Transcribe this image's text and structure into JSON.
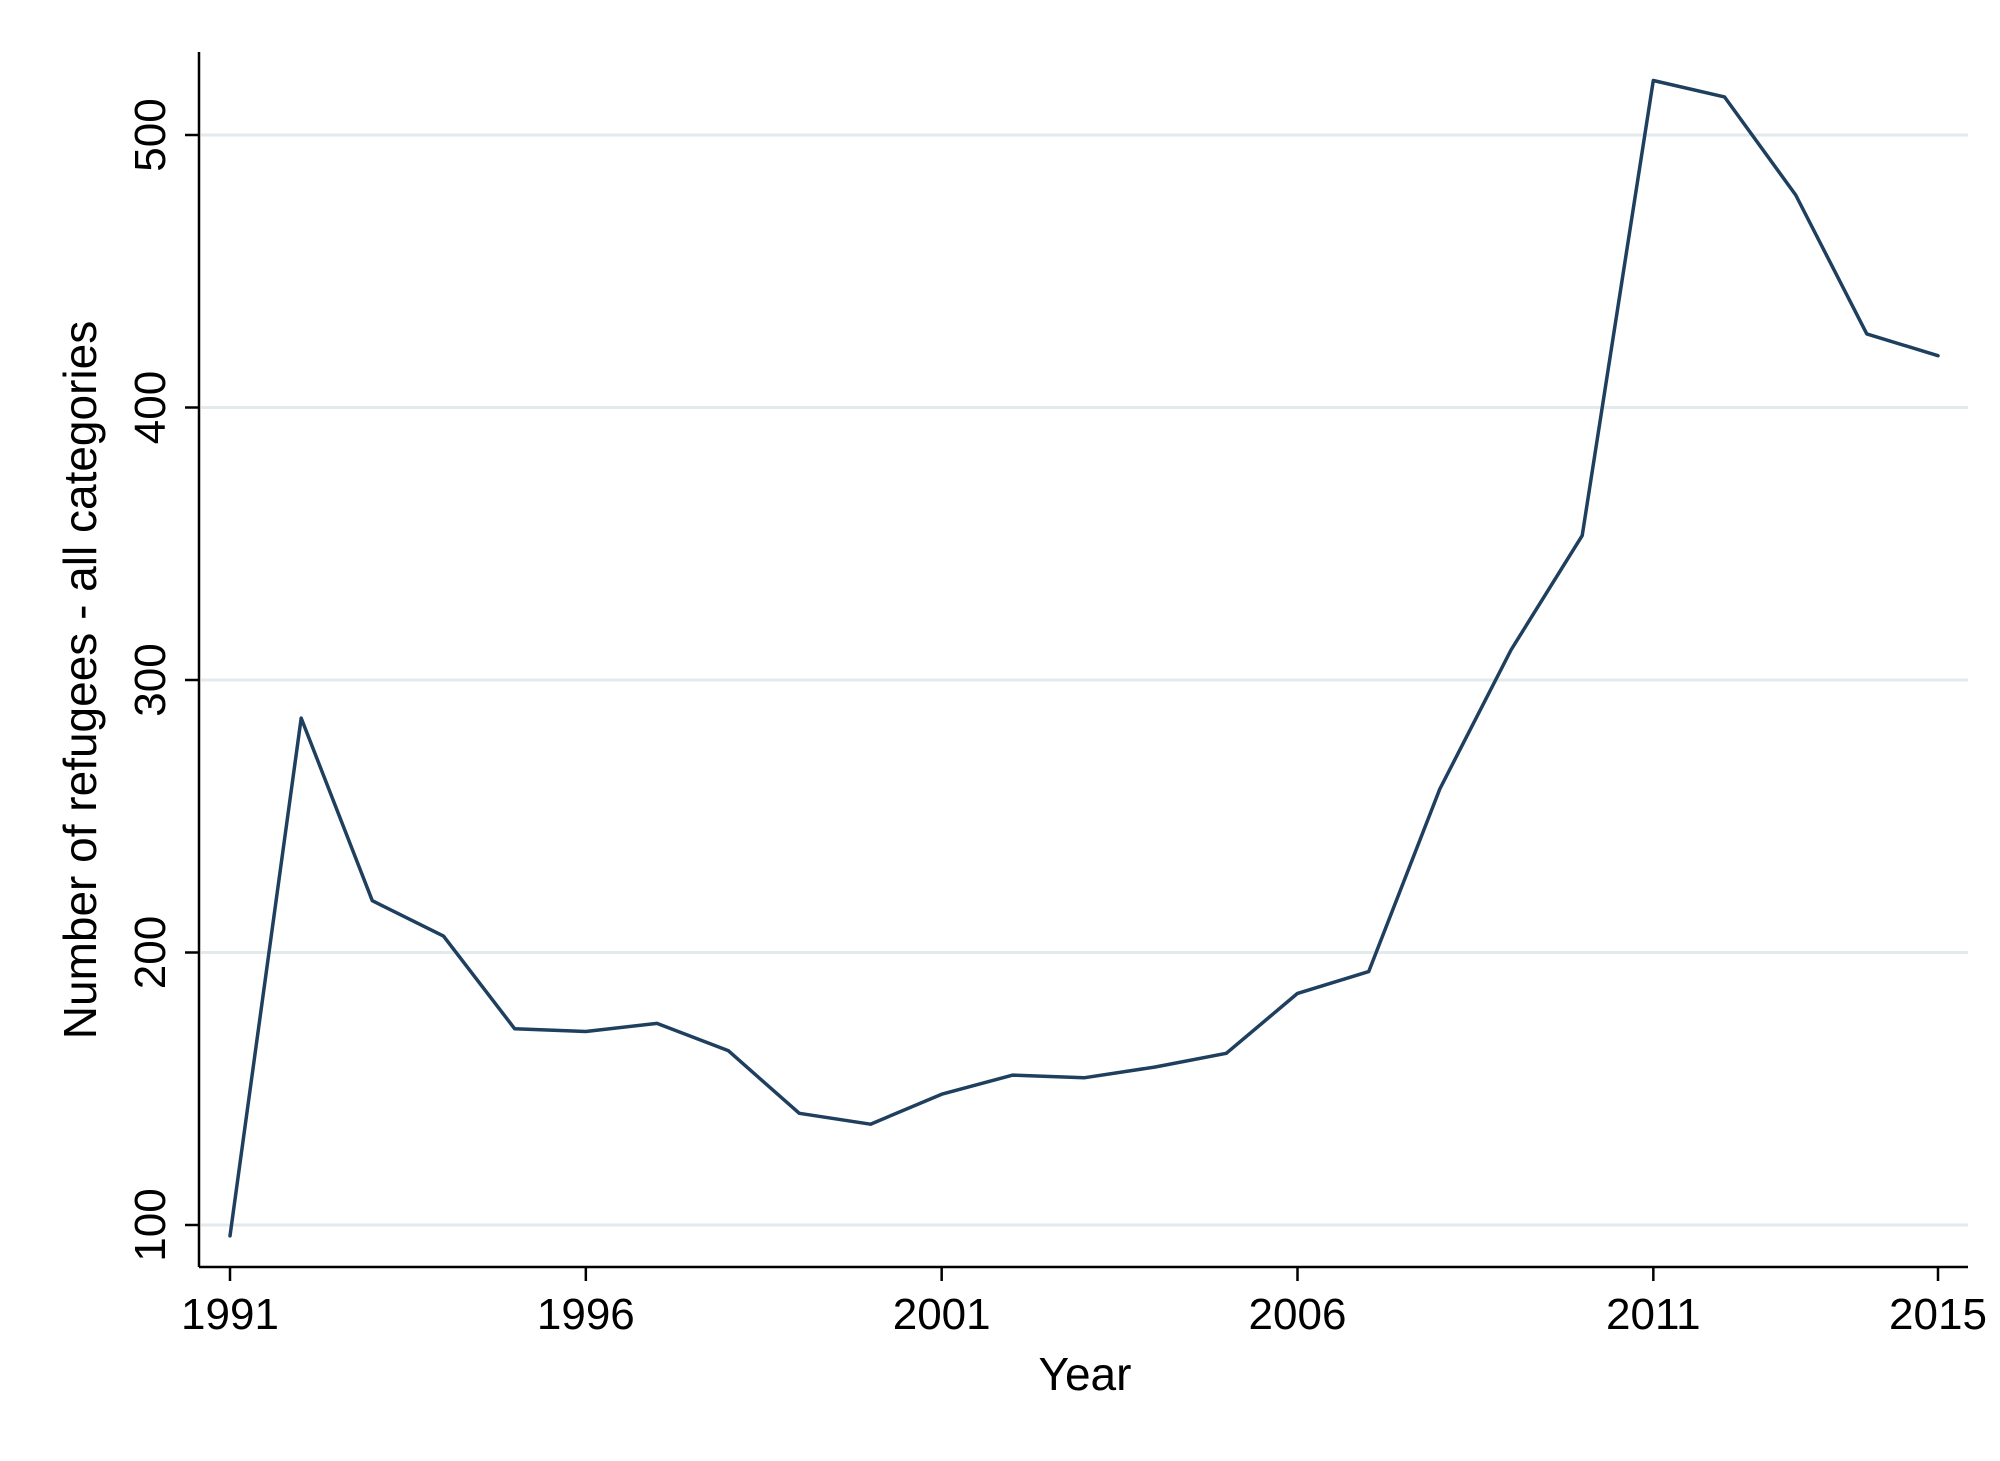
{
  "chart_data": {
    "type": "line",
    "title": "",
    "xlabel": "Year",
    "ylabel": "Number of refugees - all categories",
    "xlim": [
      1991,
      2015
    ],
    "ylim": [
      85,
      530
    ],
    "x_ticks": [
      1991,
      1996,
      2001,
      2006,
      2011,
      2015
    ],
    "x_tick_labels": [
      "1991",
      "1996",
      "2001",
      "2006",
      "2011",
      "2015"
    ],
    "y_ticks": [
      100,
      200,
      300,
      400,
      500
    ],
    "y_tick_labels": [
      "100",
      "200",
      "300",
      "400",
      "500"
    ],
    "grid": "horizontal",
    "legend": "none",
    "colors": {
      "line": "#1f3f5f",
      "grid": "#e3eaec",
      "axis": "#000000",
      "background": "#ffffff"
    },
    "series": [
      {
        "x": [
          1991,
          1992,
          1993,
          1994,
          1995,
          1996,
          1997,
          1998,
          1999,
          2000,
          2001,
          2002,
          2003,
          2004,
          2005,
          2006,
          2007,
          2008,
          2009,
          2010,
          2011,
          2012,
          2013,
          2014,
          2015
        ],
        "values": [
          96,
          286,
          219,
          206,
          172,
          171,
          174,
          164,
          141,
          137,
          148,
          155,
          154,
          158,
          163,
          185,
          193,
          260,
          311,
          353,
          520,
          514,
          478,
          427,
          419
        ]
      }
    ]
  }
}
